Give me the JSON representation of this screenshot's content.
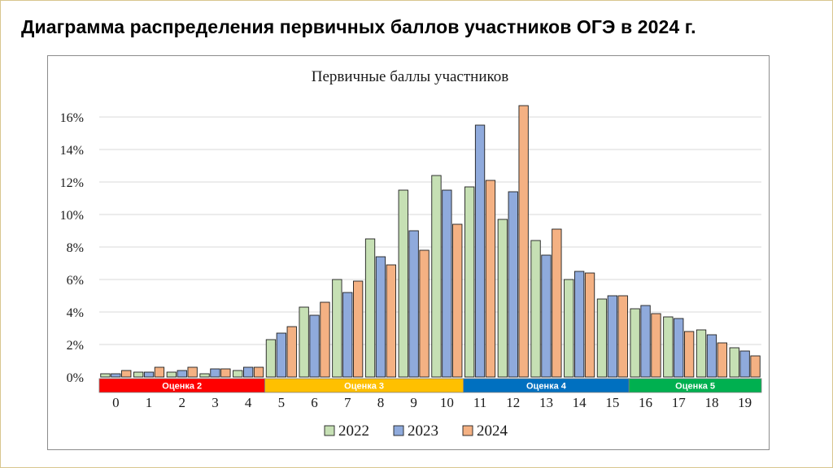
{
  "page": {
    "title": "Диаграмма распределения первичных баллов участников ОГЭ в 2024 г."
  },
  "chart_data": {
    "type": "bar",
    "title": "Первичные баллы участников",
    "xlabel": "",
    "ylabel": "",
    "categories": [
      "0",
      "1",
      "2",
      "3",
      "4",
      "5",
      "6",
      "7",
      "8",
      "9",
      "10",
      "11",
      "12",
      "13",
      "14",
      "15",
      "16",
      "17",
      "18",
      "19"
    ],
    "ylim": [
      0,
      16
    ],
    "yticks": [
      "0%",
      "2%",
      "4%",
      "6%",
      "8%",
      "10%",
      "12%",
      "14%",
      "16%"
    ],
    "grid": true,
    "legend_position": "bottom",
    "series": [
      {
        "name": "2022",
        "color": "#c6e0b4",
        "values": [
          0.2,
          0.3,
          0.3,
          0.2,
          0.4,
          2.3,
          4.3,
          6.0,
          8.5,
          11.5,
          12.4,
          11.7,
          9.7,
          8.4,
          6.0,
          4.8,
          4.2,
          3.7,
          2.9,
          1.8
        ]
      },
      {
        "name": "2023",
        "color": "#8faadc",
        "values": [
          0.2,
          0.3,
          0.4,
          0.5,
          0.6,
          2.7,
          3.8,
          5.2,
          7.4,
          9.0,
          11.5,
          15.5,
          11.4,
          7.5,
          6.5,
          5.0,
          4.4,
          3.6,
          2.6,
          1.6
        ]
      },
      {
        "name": "2024",
        "color": "#f4b183",
        "values": [
          0.4,
          0.6,
          0.6,
          0.5,
          0.6,
          3.1,
          4.6,
          5.9,
          6.9,
          7.8,
          9.4,
          12.1,
          16.7,
          9.1,
          6.4,
          5.0,
          3.9,
          2.8,
          2.1,
          1.3
        ]
      }
    ],
    "grade_bands": [
      {
        "label": "Оценка 2",
        "from": 0,
        "to": 4,
        "color": "#ff0000",
        "text_color": "#ffffff"
      },
      {
        "label": "Оценка 3",
        "from": 5,
        "to": 10,
        "color": "#ffc000",
        "text_color": "#ffffff"
      },
      {
        "label": "Оценка 4",
        "from": 11,
        "to": 15,
        "color": "#0070c0",
        "text_color": "#ffffff"
      },
      {
        "label": "Оценка 5",
        "from": 16,
        "to": 19,
        "color": "#00b050",
        "text_color": "#ffffff"
      }
    ]
  }
}
